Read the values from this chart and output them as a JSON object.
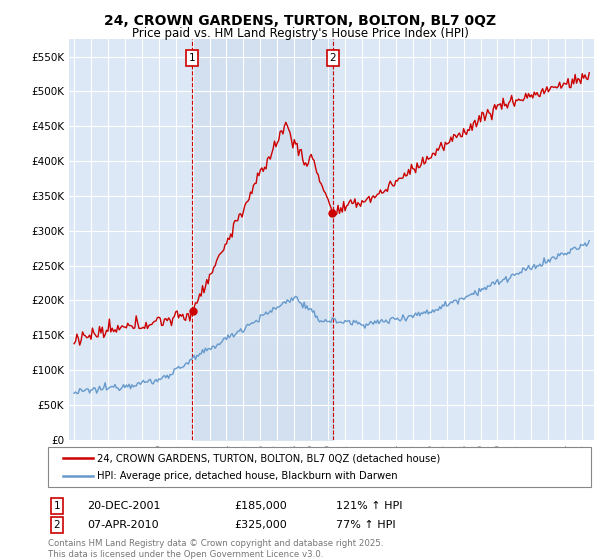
{
  "title": "24, CROWN GARDENS, TURTON, BOLTON, BL7 0QZ",
  "subtitle": "Price paid vs. HM Land Registry's House Price Index (HPI)",
  "background_color": "#ffffff",
  "plot_bg_color": "#dce8f5",
  "grid_color": "#ffffff",
  "ylim": [
    0,
    575000
  ],
  "yticks": [
    0,
    50000,
    100000,
    150000,
    200000,
    250000,
    300000,
    350000,
    400000,
    450000,
    500000,
    550000
  ],
  "ytick_labels": [
    "£0",
    "£50K",
    "£100K",
    "£150K",
    "£200K",
    "£250K",
    "£300K",
    "£350K",
    "£400K",
    "£450K",
    "£500K",
    "£550K"
  ],
  "sale1_date": 2001.97,
  "sale1_price": 185000,
  "sale1_label": "1",
  "sale1_text": "20-DEC-2001",
  "sale1_amount": "£185,000",
  "sale1_pct": "121% ↑ HPI",
  "sale2_date": 2010.27,
  "sale2_price": 325000,
  "sale2_label": "2",
  "sale2_text": "07-APR-2010",
  "sale2_amount": "£325,000",
  "sale2_pct": "77% ↑ HPI",
  "legend_line1": "24, CROWN GARDENS, TURTON, BOLTON, BL7 0QZ (detached house)",
  "legend_line2": "HPI: Average price, detached house, Blackburn with Darwen",
  "footer": "Contains HM Land Registry data © Crown copyright and database right 2025.\nThis data is licensed under the Open Government Licence v3.0.",
  "red_color": "#cc0000",
  "blue_color": "#6699cc",
  "shade_color": "#ccdcee"
}
